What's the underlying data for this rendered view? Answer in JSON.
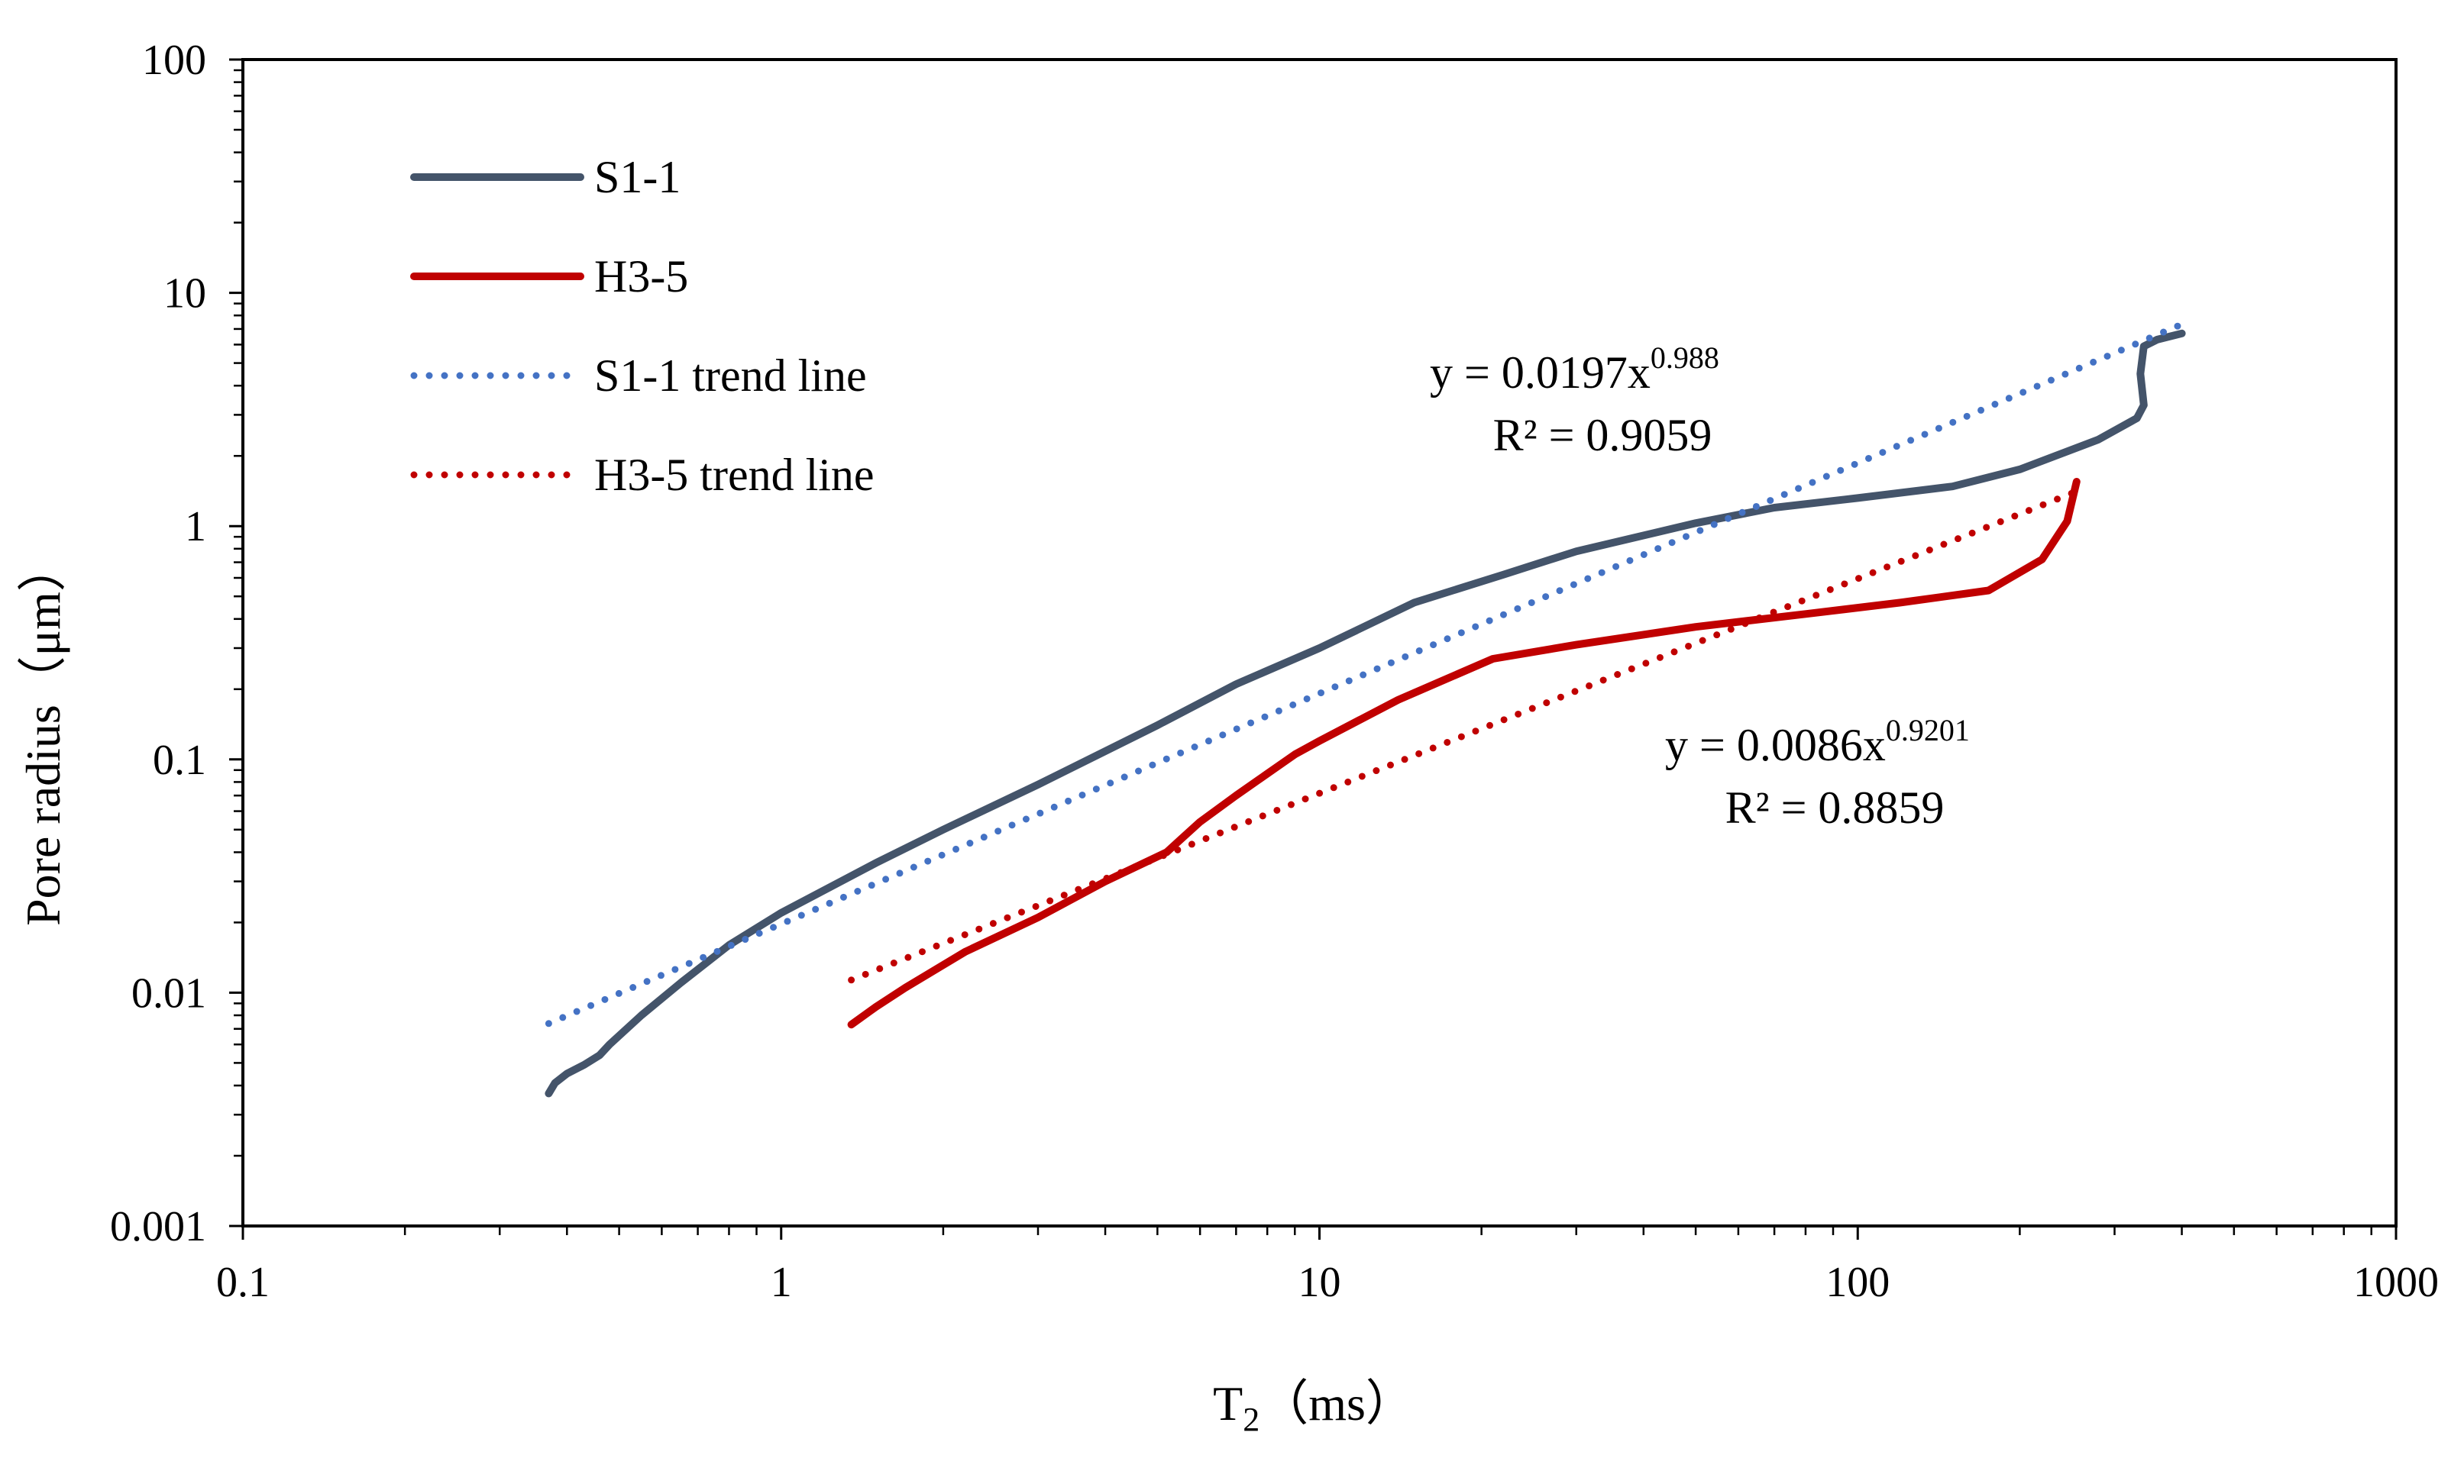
{
  "chart_data": {
    "type": "line",
    "title": "",
    "xlabel": "T",
    "xlabel_sub": "2",
    "xlabel_unit": "（ms）",
    "ylabel": "Pore radius（μm）",
    "xscale": "log",
    "yscale": "log",
    "xlim": [
      0.1,
      1000
    ],
    "ylim": [
      0.001,
      100
    ],
    "x_ticks": [
      "0.1",
      "1",
      "10",
      "100",
      "1000"
    ],
    "y_ticks": [
      "0.001",
      "0.01",
      "0.1",
      "1",
      "10",
      "100"
    ],
    "grid": false,
    "legend_position": "top-left",
    "colors": {
      "s1": "#44546A",
      "h3": "#C00000",
      "s1_trend": "#4472C4",
      "h3_trend": "#C00000"
    },
    "series": [
      {
        "name": "S1-1",
        "style": "solid",
        "color": "#44546A",
        "points": [
          [
            0.37,
            0.0037
          ],
          [
            0.38,
            0.0041
          ],
          [
            0.4,
            0.0045
          ],
          [
            0.43,
            0.0049
          ],
          [
            0.46,
            0.0054
          ],
          [
            0.48,
            0.006
          ],
          [
            0.55,
            0.008
          ],
          [
            0.65,
            0.011
          ],
          [
            0.8,
            0.016
          ],
          [
            1.0,
            0.022
          ],
          [
            1.5,
            0.036
          ],
          [
            2.0,
            0.05
          ],
          [
            3.0,
            0.078
          ],
          [
            5.0,
            0.14
          ],
          [
            7.0,
            0.21
          ],
          [
            10.0,
            0.3
          ],
          [
            15.0,
            0.47
          ],
          [
            22.0,
            0.62
          ],
          [
            30.0,
            0.78
          ],
          [
            50.0,
            1.03
          ],
          [
            70.0,
            1.2
          ],
          [
            100.0,
            1.32
          ],
          [
            150.0,
            1.48
          ],
          [
            200.0,
            1.75
          ],
          [
            280.0,
            2.35
          ],
          [
            330.0,
            2.9
          ],
          [
            340.0,
            3.3
          ],
          [
            335.0,
            4.5
          ],
          [
            340.0,
            5.9
          ],
          [
            360.0,
            6.3
          ],
          [
            400.0,
            6.7
          ]
        ]
      },
      {
        "name": "H3-5",
        "style": "solid",
        "color": "#C00000",
        "points": [
          [
            1.35,
            0.0073
          ],
          [
            1.5,
            0.0087
          ],
          [
            1.7,
            0.0105
          ],
          [
            2.2,
            0.015
          ],
          [
            3.0,
            0.021
          ],
          [
            4.0,
            0.03
          ],
          [
            5.2,
            0.04
          ],
          [
            5.5,
            0.045
          ],
          [
            6.0,
            0.054
          ],
          [
            7.0,
            0.07
          ],
          [
            9.0,
            0.105
          ],
          [
            10.0,
            0.12
          ],
          [
            14.0,
            0.18
          ],
          [
            21.0,
            0.27
          ],
          [
            30.0,
            0.31
          ],
          [
            50.0,
            0.37
          ],
          [
            80.0,
            0.42
          ],
          [
            120.0,
            0.47
          ],
          [
            175.0,
            0.53
          ],
          [
            220.0,
            0.72
          ],
          [
            245.0,
            1.05
          ],
          [
            255.0,
            1.55
          ]
        ]
      },
      {
        "name": "S1-1 trend line",
        "style": "dotted",
        "color": "#4472C4",
        "fit": {
          "a": 0.0197,
          "b": 0.988
        },
        "x_range": [
          0.37,
          400
        ]
      },
      {
        "name": "H3-5 trend line",
        "style": "dotted",
        "color": "#C00000",
        "fit": {
          "a": 0.0086,
          "b": 0.9201
        },
        "x_range": [
          1.35,
          255
        ]
      }
    ],
    "annotations": [
      {
        "id": "s1",
        "eq_prefix": "y = 0.0197x",
        "eq_exp": "0.988",
        "r2": "R² = 0.9059"
      },
      {
        "id": "h3",
        "eq_prefix": "y = 0.0086x",
        "eq_exp": "0.9201",
        "r2": "R² = 0.8859"
      }
    ]
  }
}
